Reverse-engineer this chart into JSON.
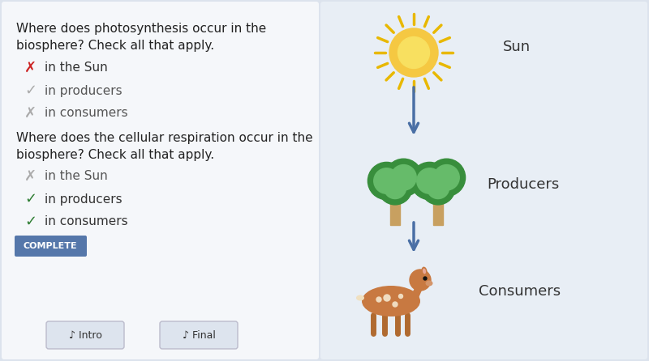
{
  "bg_color": "#dce3ed",
  "left_panel_bg": "#f5f7fa",
  "right_panel_bg": "#e8eef5",
  "question1": "Where does photosynthesis occur in the\nbiosphere? Check all that apply.",
  "question2": "Where does the cellular respiration occur in the\nbiosphere? Check all that apply.",
  "q1_items": [
    {
      "symbol": "✗",
      "text": "in the Sun",
      "sym_color": "#cc2222",
      "txt_color": "#333333"
    },
    {
      "symbol": "✓",
      "text": "in producers",
      "sym_color": "#aaaaaa",
      "txt_color": "#555555"
    },
    {
      "symbol": "✗",
      "text": "in consumers",
      "sym_color": "#aaaaaa",
      "txt_color": "#555555"
    }
  ],
  "q2_items": [
    {
      "symbol": "✗",
      "text": "in the Sun",
      "sym_color": "#aaaaaa",
      "txt_color": "#555555"
    },
    {
      "symbol": "✓",
      "text": "in producers",
      "sym_color": "#2e7d32",
      "txt_color": "#333333"
    },
    {
      "symbol": "✓",
      "text": "in consumers",
      "sym_color": "#2e7d32",
      "txt_color": "#333333"
    }
  ],
  "complete_label": "COMPLETE",
  "complete_bg": "#5577aa",
  "complete_text_color": "#ffffff",
  "labels": [
    "Sun",
    "Producers",
    "Consumers"
  ],
  "label_color": "#333333",
  "arrow_color": "#4a6fa5",
  "sun_color": "#f5c842",
  "sun_ray_color": "#e8b800",
  "intro_label": "Intro",
  "final_label": "Final",
  "btn_bg": "#dde4ee",
  "btn_edge": "#bbbbcc"
}
